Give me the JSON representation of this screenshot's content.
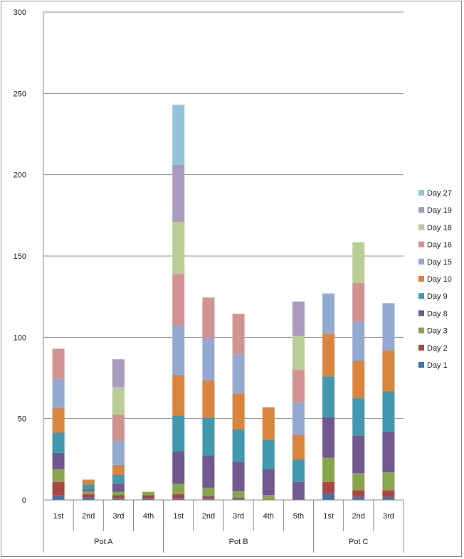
{
  "chart_data": {
    "type": "stacked-bar",
    "title": "",
    "xlabel": "",
    "ylabel": "",
    "ylim": [
      0,
      300
    ],
    "yticks": [
      0,
      50,
      100,
      150,
      200,
      250,
      300
    ],
    "grid": true,
    "legend_position": "right",
    "groups": [
      {
        "name": "Pot A",
        "categories": [
          "1st",
          "2nd",
          "3rd",
          "4th"
        ]
      },
      {
        "name": "Pot B",
        "categories": [
          "1st",
          "2nd",
          "3rd",
          "4th",
          "5th"
        ]
      },
      {
        "name": "Pot C",
        "categories": [
          "1st",
          "2nd",
          "3rd"
        ]
      }
    ],
    "series": [
      {
        "name": "Day 1",
        "color": "#4572A7",
        "values": [
          3,
          1.5,
          1,
          1,
          1,
          1,
          1,
          0,
          0,
          4,
          2,
          2
        ]
      },
      {
        "name": "Day 2",
        "color": "#AA4643",
        "values": [
          8,
          2,
          2,
          2,
          2.5,
          1.5,
          0.5,
          0,
          0,
          7,
          4,
          4
        ]
      },
      {
        "name": "Day 3",
        "color": "#89A54E",
        "values": [
          8,
          2,
          2,
          2,
          6.5,
          5,
          4,
          3,
          0,
          15,
          10.5,
          11
        ]
      },
      {
        "name": "Day 8",
        "color": "#71588F",
        "values": [
          10,
          1,
          5,
          0,
          20,
          20,
          18,
          16,
          11,
          25,
          23,
          25
        ]
      },
      {
        "name": "Day 9",
        "color": "#4198AF",
        "values": [
          12.5,
          3,
          5.5,
          0,
          22,
          23,
          20,
          18,
          14,
          25,
          23,
          25
        ]
      },
      {
        "name": "Day 10",
        "color": "#DB843D",
        "values": [
          15,
          3,
          6,
          0,
          25,
          23,
          22,
          20,
          15,
          26,
          23,
          25
        ]
      },
      {
        "name": "Day 15",
        "color": "#93A9CF",
        "values": [
          18,
          0,
          15,
          0,
          30,
          26,
          24,
          0,
          20,
          25,
          24,
          29
        ]
      },
      {
        "name": "Day 16",
        "color": "#D19392",
        "values": [
          18.5,
          0,
          16,
          0,
          32,
          25,
          25,
          0,
          20,
          0,
          24,
          0
        ]
      },
      {
        "name": "Day 18",
        "color": "#B9CD96",
        "values": [
          0,
          0,
          17,
          0,
          32,
          0,
          0,
          0,
          21,
          0,
          25,
          0
        ]
      },
      {
        "name": "Day 19",
        "color": "#A99BBD",
        "values": [
          0,
          0,
          17,
          0,
          35,
          0,
          0,
          0,
          21,
          0,
          0,
          0
        ]
      },
      {
        "name": "Day 27",
        "color": "#92C5D9",
        "values": [
          0,
          0,
          0,
          0,
          37,
          0,
          0,
          0,
          0,
          0,
          0,
          0
        ]
      }
    ]
  }
}
